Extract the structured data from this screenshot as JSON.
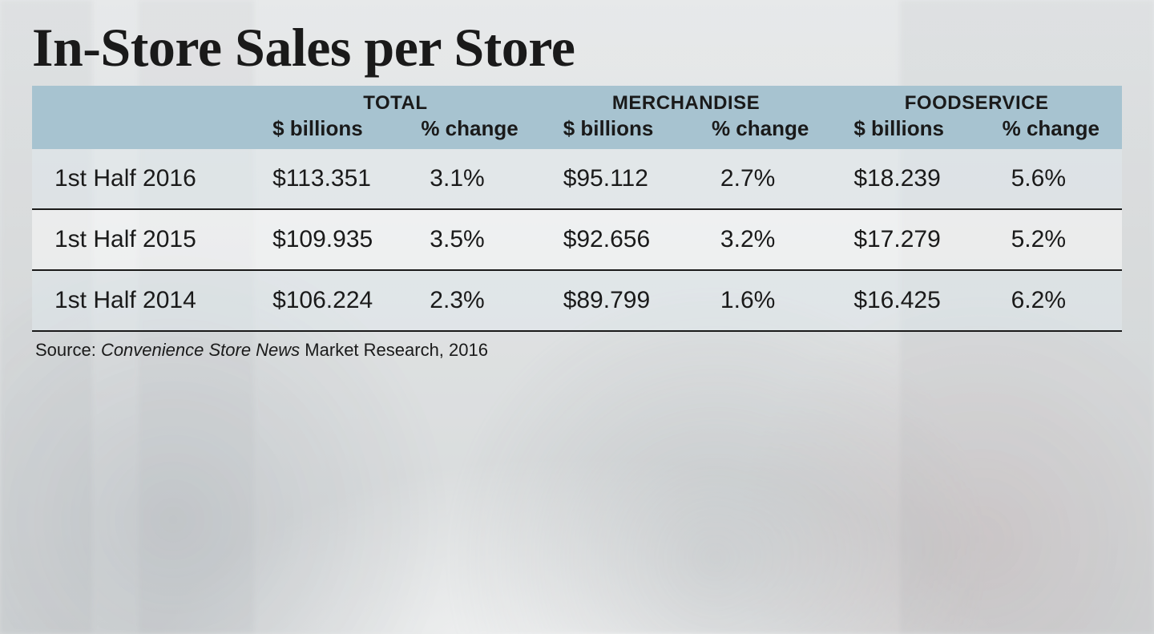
{
  "title": "In-Store Sales per Store",
  "table": {
    "type": "table",
    "header_bg_color": "#a7c3d0",
    "text_color": "#1a1a1a",
    "border_color": "#1a1a1a",
    "row_alt_bg": "rgba(200,215,222,0.25)",
    "title_fontsize": 68,
    "header_group_fontsize": 24,
    "header_sub_fontsize": 26,
    "cell_fontsize": 30,
    "source_fontsize": 22,
    "column_groups": [
      {
        "label": "TOTAL",
        "sub": [
          "$ billions",
          "% change"
        ]
      },
      {
        "label": "MERCHANDISE",
        "sub": [
          "$ billions",
          "% change"
        ]
      },
      {
        "label": "FOODSERVICE",
        "sub": [
          "$ billions",
          "% change"
        ]
      }
    ],
    "rows": [
      {
        "label": "1st Half 2016",
        "total_billions": "$113.351",
        "total_change": "3.1%",
        "merch_billions": "$95.112",
        "merch_change": "2.7%",
        "food_billions": "$18.239",
        "food_change": "5.6%"
      },
      {
        "label": "1st Half 2015",
        "total_billions": "$109.935",
        "total_change": "3.5%",
        "merch_billions": "$92.656",
        "merch_change": "3.2%",
        "food_billions": "$17.279",
        "food_change": "5.2%"
      },
      {
        "label": "1st Half 2014",
        "total_billions": "$106.224",
        "total_change": "2.3%",
        "merch_billions": "$89.799",
        "merch_change": "1.6%",
        "food_billions": "$16.425",
        "food_change": "6.2%"
      }
    ]
  },
  "source": {
    "prefix": "Source: ",
    "name": "Convenience Store News",
    "suffix": " Market Research, 2016"
  }
}
